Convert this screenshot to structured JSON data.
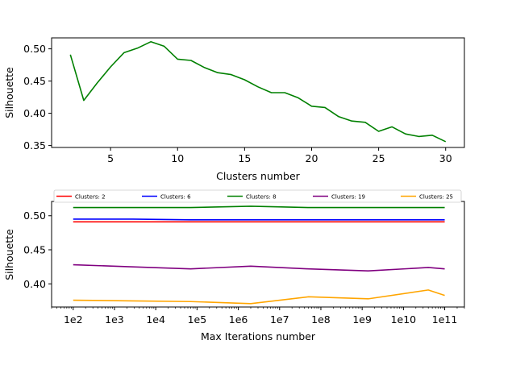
{
  "chart_data": [
    {
      "type": "line",
      "xlabel": "Clusters number",
      "ylabel": "Silhouette",
      "xlim": [
        0.6,
        31.4
      ],
      "ylim": [
        0.347,
        0.517
      ],
      "xticks": [
        5,
        10,
        15,
        20,
        25,
        30
      ],
      "xtick_labels": [
        "5",
        "10",
        "15",
        "20",
        "25",
        "30"
      ],
      "yticks": [
        0.35,
        0.4,
        0.45,
        0.5
      ],
      "ytick_labels": [
        "0.35",
        "0.40",
        "0.45",
        "0.50"
      ],
      "grid": false,
      "series": [
        {
          "color": "#008000",
          "x": [
            2,
            3,
            4,
            5,
            6,
            7,
            8,
            9,
            10,
            11,
            12,
            13,
            14,
            15,
            16,
            17,
            18,
            19,
            20,
            21,
            22,
            23,
            24,
            25,
            26,
            27,
            28,
            29,
            30
          ],
          "y": [
            0.491,
            0.42,
            0.447,
            0.472,
            0.494,
            0.501,
            0.511,
            0.504,
            0.484,
            0.482,
            0.471,
            0.463,
            0.46,
            0.452,
            0.441,
            0.432,
            0.432,
            0.424,
            0.411,
            0.409,
            0.395,
            0.388,
            0.386,
            0.372,
            0.379,
            0.368,
            0.364,
            0.366,
            0.356
          ]
        }
      ]
    },
    {
      "type": "line",
      "xlabel": "Max Iterations number",
      "ylabel": "Silhouette",
      "xscale": "log",
      "xlim": [
        30,
        300000000000
      ],
      "ylim": [
        0.366,
        0.521
      ],
      "xticks": [
        100,
        1000,
        10000,
        100000,
        1000000,
        10000000,
        100000000,
        1000000000,
        10000000000,
        100000000000
      ],
      "xtick_labels": [
        "1e2",
        "1e3",
        "1e4",
        "1e5",
        "1e6",
        "1e7",
        "1e8",
        "1e9",
        "1e10",
        "1e11"
      ],
      "yticks": [
        0.4,
        0.45,
        0.5
      ],
      "ytick_labels": [
        "0.40",
        "0.45",
        "0.50"
      ],
      "grid": false,
      "legend_position": "top",
      "x": [
        100,
        2800,
        70000,
        2000000,
        50000000,
        1400000000,
        40000000000,
        100000000000
      ],
      "series": [
        {
          "name": "Clusters: 2",
          "color": "#ff0000",
          "values": [
            0.491,
            0.491,
            0.491,
            0.491,
            0.491,
            0.491,
            0.491,
            0.491
          ]
        },
        {
          "name": "Clusters: 6",
          "color": "#0000ff",
          "values": [
            0.495,
            0.495,
            0.494,
            0.494,
            0.494,
            0.494,
            0.494,
            0.494
          ]
        },
        {
          "name": "Clusters: 8",
          "color": "#008000",
          "values": [
            0.512,
            0.512,
            0.512,
            0.514,
            0.512,
            0.512,
            0.512,
            0.512
          ]
        },
        {
          "name": "Clusters: 19",
          "color": "#800080",
          "values": [
            0.428,
            0.425,
            0.422,
            0.426,
            0.422,
            0.419,
            0.424,
            0.422
          ]
        },
        {
          "name": "Clusters: 25",
          "color": "#ffa500",
          "values": [
            0.376,
            0.375,
            0.374,
            0.371,
            0.381,
            0.378,
            0.391,
            0.383
          ]
        },
        {
          "x": [
            100,
            15000,
            200000,
            4000000,
            100000000,
            3000000000,
            40000000000,
            100000000000
          ],
          "color": "#ffa500",
          "values": [
            0.376,
            0.375,
            0.374,
            0.371,
            0.381,
            0.378,
            0.391,
            0.383
          ]
        }
      ]
    }
  ]
}
